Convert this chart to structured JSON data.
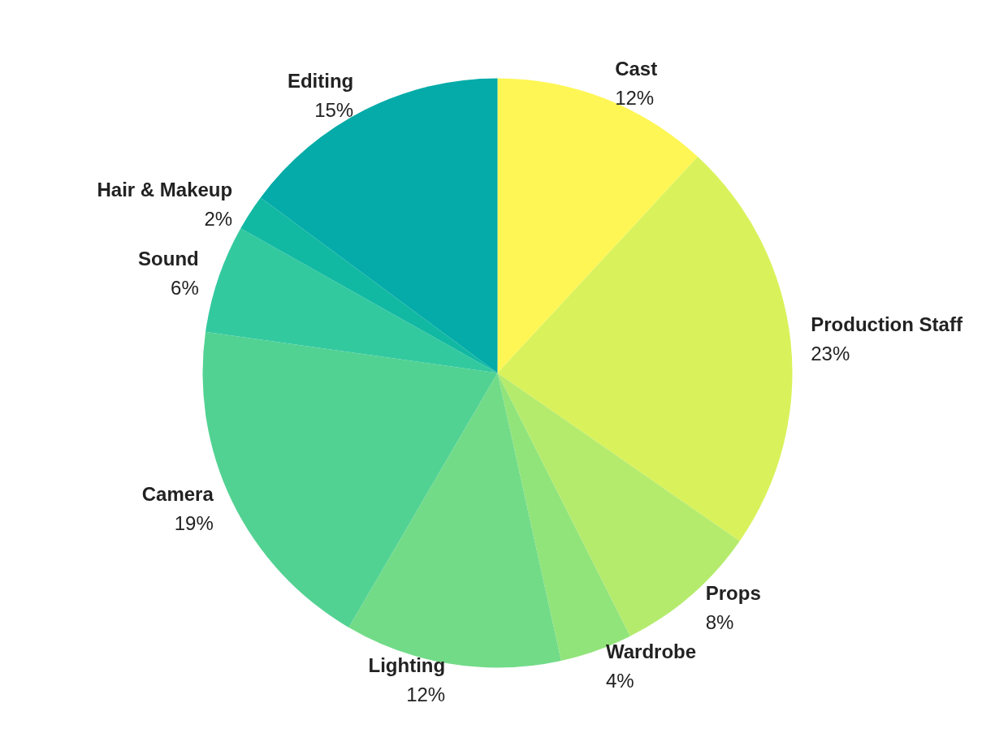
{
  "chart_data": {
    "type": "pie",
    "categories": [
      "Cast",
      "Production Staff",
      "Props",
      "Wardrobe",
      "Lighting",
      "Camera",
      "Sound",
      "Hair & Makeup",
      "Editing"
    ],
    "values": [
      12,
      23,
      8,
      4,
      12,
      19,
      6,
      2,
      15
    ],
    "value_labels": [
      "12%",
      "23%",
      "8%",
      "4%",
      "12%",
      "19%",
      "6%",
      "2%",
      "15%"
    ],
    "colors": [
      "#fef655",
      "#d9f25b",
      "#b5eb6d",
      "#91e47a",
      "#72db88",
      "#52d292",
      "#33c99f",
      "#12b9a2",
      "#04aba8"
    ],
    "legend": false
  }
}
